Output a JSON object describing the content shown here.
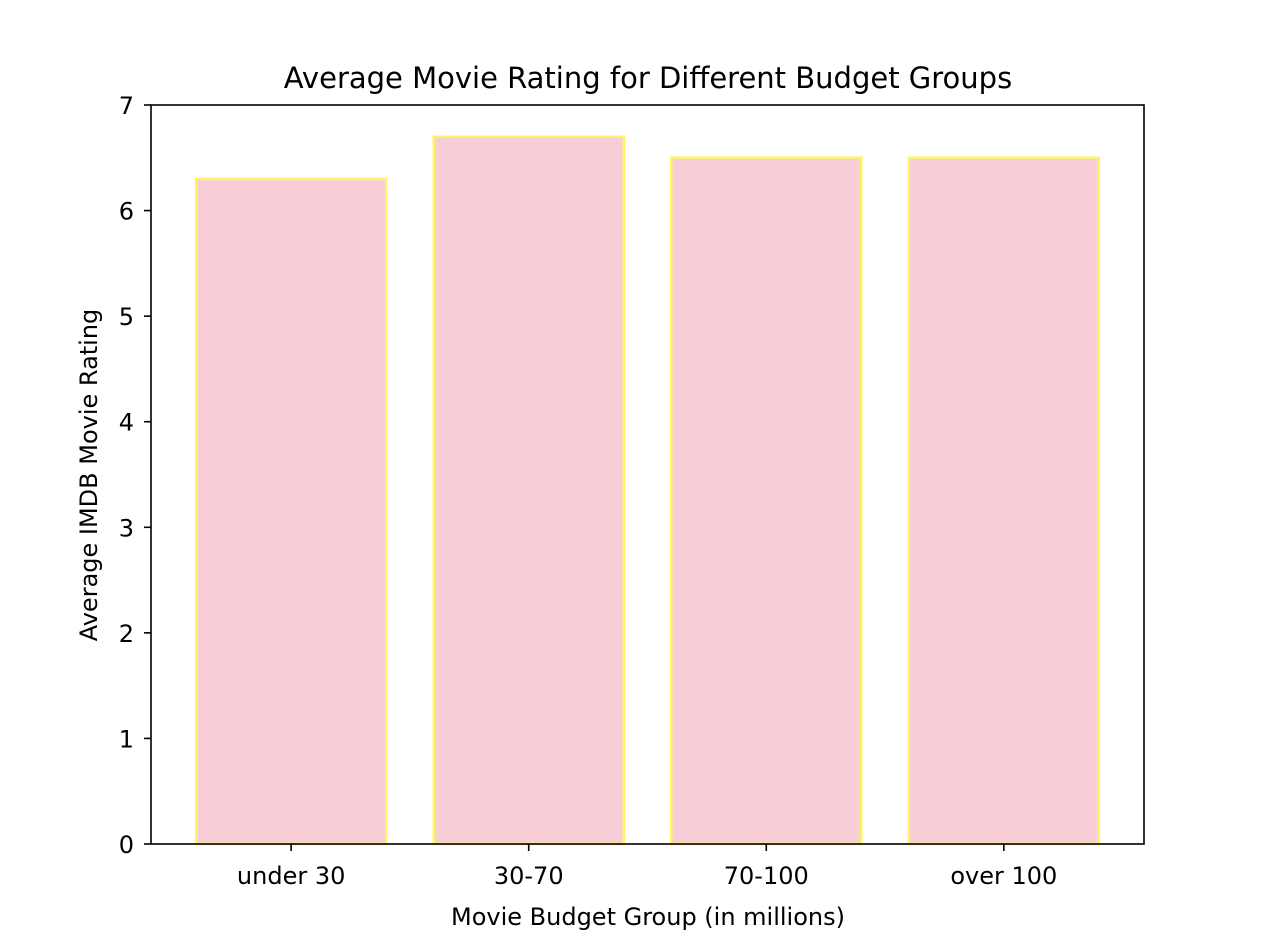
{
  "chart_data": {
    "type": "bar",
    "title": "Average Movie Rating for Different Budget Groups",
    "xlabel": "Movie Budget Group (in millions)",
    "ylabel": "Average IMDB Movie Rating",
    "categories": [
      "under 30",
      "30-70",
      "70-100",
      "over 100"
    ],
    "values": [
      6.3,
      6.7,
      6.5,
      6.5
    ],
    "ylim": [
      0,
      7
    ],
    "yticks": [
      0,
      1,
      2,
      3,
      4,
      5,
      6,
      7
    ],
    "grid": false,
    "bar_color": "#f7ced6",
    "bar_edge_color": "#fff36b"
  }
}
